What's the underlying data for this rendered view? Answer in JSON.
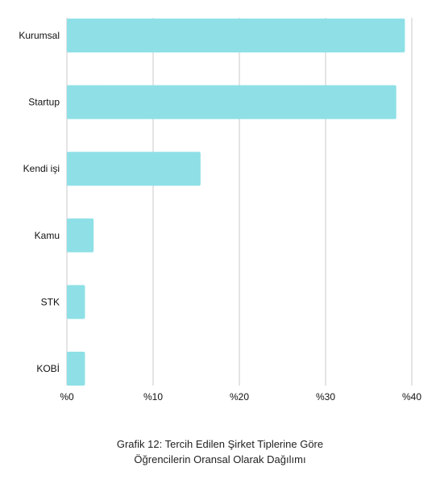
{
  "chart_data": {
    "type": "bar",
    "orientation": "horizontal",
    "categories": [
      "Kurumsal",
      "Startup",
      "Kendi işi",
      "Kamu",
      "STK",
      "KOBİ"
    ],
    "values": [
      39.2,
      38.2,
      15.5,
      3.1,
      2.1,
      2.1
    ],
    "xlim": [
      0,
      40
    ],
    "x_ticks": [
      0,
      10,
      20,
      30,
      40
    ],
    "x_tick_labels": [
      "%0",
      "%10",
      "%20",
      "%30",
      "%40"
    ],
    "grid": "vertical",
    "legend": "none",
    "bar_color": "#8ee0e6",
    "grid_color": "#c8c8c8",
    "title": "",
    "xlabel": "",
    "ylabel": ""
  },
  "caption": {
    "line1": "Grafik 12: Tercih Edilen Şirket Tiplerine Göre",
    "line2": "Öğrencilerin Oransal Olarak Dağılımı"
  }
}
